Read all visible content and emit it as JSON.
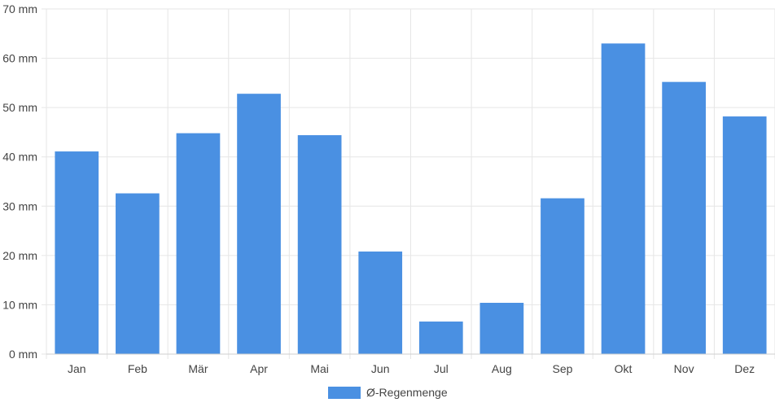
{
  "chart_data": {
    "type": "bar",
    "categories": [
      "Jan",
      "Feb",
      "Mär",
      "Apr",
      "Mai",
      "Jun",
      "Jul",
      "Aug",
      "Sep",
      "Okt",
      "Nov",
      "Dez"
    ],
    "series": [
      {
        "name": "Ø-Regenmenge",
        "values": [
          41.1,
          32.6,
          44.8,
          52.8,
          44.4,
          20.8,
          6.6,
          10.4,
          31.6,
          63.0,
          55.2,
          48.2
        ],
        "color": "#4a90e2"
      }
    ],
    "y_ticks": [
      "0 mm",
      "10 mm",
      "20 mm",
      "30 mm",
      "40 mm",
      "50 mm",
      "60 mm",
      "70 mm"
    ],
    "ylim": [
      0,
      70
    ],
    "grid": true,
    "legend_position": "bottom"
  }
}
